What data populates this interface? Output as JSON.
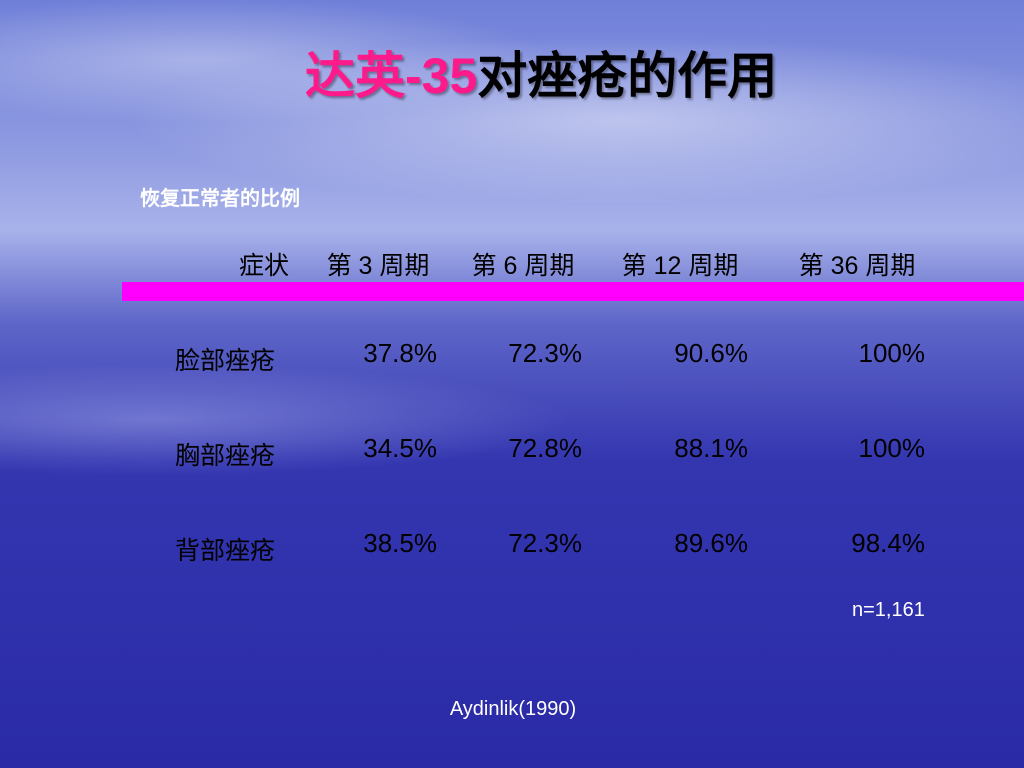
{
  "title": {
    "accent": "达英-35",
    "rest": "对痤疮的作用"
  },
  "subtitle": "恢复正常者的比例",
  "table": {
    "header": [
      "症状",
      "第 3 周期",
      "第 6 周期",
      "第 12 周期",
      "第 36 周期"
    ],
    "rows": [
      [
        "脸部痤疮",
        "37.8%",
        "72.3%",
        "90.6%",
        "100%"
      ],
      [
        "胸部痤疮",
        "34.5%",
        "72.8%",
        "88.1%",
        "100%"
      ],
      [
        "背部痤疮",
        "38.5%",
        "72.3%",
        "89.6%",
        "98.4%"
      ]
    ]
  },
  "note": "n=1,161",
  "source": "Aydinlik(1990)"
}
